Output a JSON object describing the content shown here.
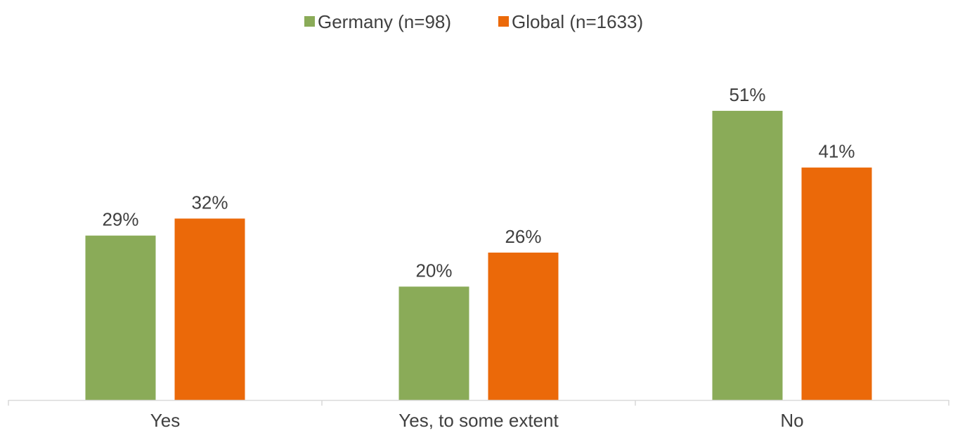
{
  "chart_data": {
    "type": "bar",
    "title": "",
    "xlabel": "",
    "ylabel": "",
    "categories": [
      "Yes",
      "Yes, to some extent",
      "No"
    ],
    "series": [
      {
        "name": "Germany (n=98)",
        "color": "#8aab58",
        "values": [
          29,
          20,
          51
        ],
        "labels": [
          "29%",
          "20%",
          "51%"
        ]
      },
      {
        "name": "Global (n=1633)",
        "color": "#eb6909",
        "values": [
          32,
          26,
          41
        ],
        "labels": [
          "32%",
          "26%",
          "41%"
        ]
      }
    ],
    "ylim": [
      0,
      55
    ],
    "grid": false,
    "legend_position": "top-center",
    "axis_color": "#d9d9d9"
  }
}
